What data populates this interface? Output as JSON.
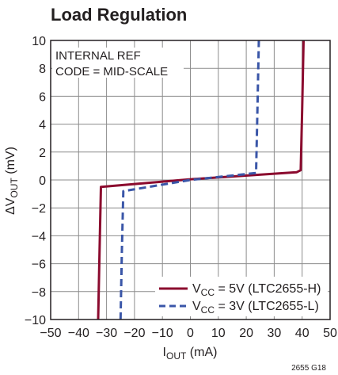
{
  "chart_data": {
    "type": "line",
    "title": "Load Regulation",
    "xlabel": "IOUT (mA)",
    "ylabel": "ΔVOUT (mV)",
    "xlim": [
      -50,
      50
    ],
    "ylim": [
      -10,
      10
    ],
    "xticks": [
      -50,
      -40,
      -30,
      -20,
      -10,
      0,
      10,
      20,
      30,
      40,
      50
    ],
    "yticks": [
      -10,
      -8,
      -6,
      -4,
      -2,
      0,
      2,
      4,
      6,
      8,
      10
    ],
    "grid": true,
    "legend_position": "bottom-right",
    "annotations": [
      "INTERNAL REF",
      "CODE = MID-SCALE"
    ],
    "figure_id": "2655 G18",
    "series": [
      {
        "name": "VCC = 5V (LTC2655-H)",
        "color": "#8b0a2e",
        "style": "solid",
        "x": [
          -33,
          -32.5,
          -32,
          0,
          38,
          39.5,
          40,
          40.5
        ],
        "y": [
          -10,
          -5,
          -0.5,
          0.05,
          0.55,
          0.7,
          5,
          10
        ]
      },
      {
        "name": "VCC = 3V (LTC2655-L)",
        "color": "#3a56a8",
        "style": "dashed",
        "x": [
          -25,
          -24.5,
          -24,
          0,
          23.5,
          24,
          24.5
        ],
        "y": [
          -10,
          -5,
          -0.8,
          0.0,
          0.5,
          5,
          10
        ]
      }
    ]
  }
}
